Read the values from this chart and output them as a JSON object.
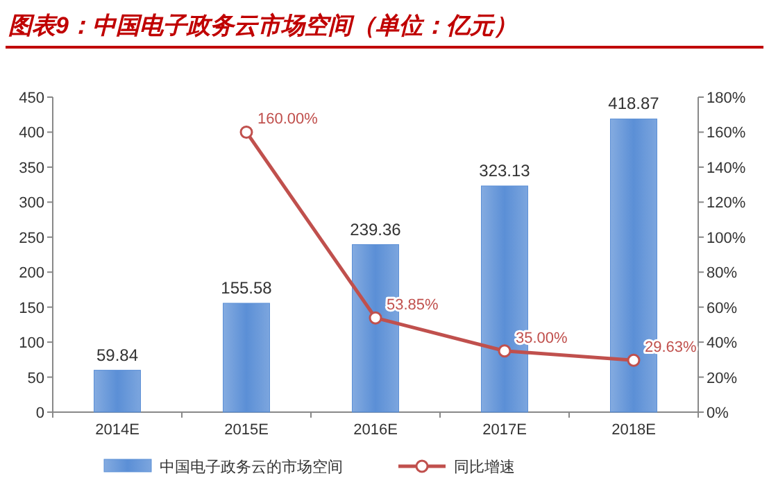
{
  "chart_data": {
    "type": "bar",
    "title": "图表9：中国电子政务云市场空间（单位：亿元）",
    "categories": [
      "2014E",
      "2015E",
      "2016E",
      "2017E",
      "2018E"
    ],
    "series": [
      {
        "name": "中国电子政务云的市场空间",
        "color": "#5b8fd6",
        "values": [
          59.84,
          155.58,
          239.36,
          323.13,
          418.87
        ],
        "value_labels": [
          "59.84",
          "155.58",
          "239.36",
          "323.13",
          "418.87"
        ]
      },
      {
        "name": "同比增速",
        "type": "line",
        "axis": "y2",
        "color": "#c0504d",
        "marker": "circle",
        "values": [
          null,
          160.0,
          53.85,
          35.0,
          29.63
        ],
        "value_labels": [
          null,
          "160.00%",
          "53.85%",
          "35.00%",
          "29.63%"
        ]
      }
    ],
    "ylim": [
      0,
      450
    ],
    "yticks": [
      0,
      50,
      100,
      150,
      200,
      250,
      300,
      350,
      400,
      450
    ],
    "y2lim": [
      0,
      180
    ],
    "y2ticks": [
      {
        "value": 0,
        "label": "0%"
      },
      {
        "value": 20,
        "label": "20%"
      },
      {
        "value": 40,
        "label": "40%"
      },
      {
        "value": 60,
        "label": "60%"
      },
      {
        "value": 80,
        "label": "80%"
      },
      {
        "value": 100,
        "label": "100%"
      },
      {
        "value": 120,
        "label": "120%"
      },
      {
        "value": 140,
        "label": "140%"
      },
      {
        "value": 160,
        "label": "160%"
      },
      {
        "value": 180,
        "label": "180%"
      }
    ],
    "legend": "bottom"
  }
}
